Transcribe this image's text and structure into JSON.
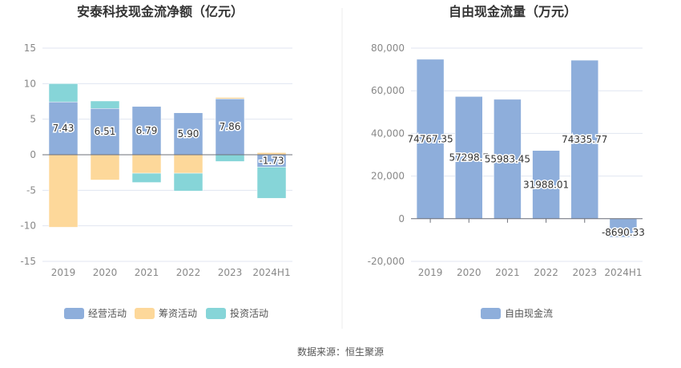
{
  "source": "数据来源：恒生聚源",
  "chart_data": [
    {
      "type": "bar",
      "stacked": true,
      "title": "安泰科技现金流净额（亿元）",
      "categories": [
        "2019",
        "2020",
        "2021",
        "2022",
        "2023",
        "2024H1"
      ],
      "ylim": [
        -15,
        15
      ],
      "yticks": [
        15,
        10,
        5,
        0,
        -5,
        -10,
        -15
      ],
      "legend_position": "bottom",
      "series": [
        {
          "name": "经营活动",
          "color": "#8eaedb",
          "values": [
            7.43,
            6.51,
            6.79,
            5.9,
            7.86,
            -1.73
          ],
          "labels": [
            "7.43",
            "6.51",
            "6.79",
            "5.90",
            "7.86",
            "-1.73"
          ]
        },
        {
          "name": "筹资活动",
          "color": "#fdd89a",
          "values": [
            -10.2,
            -3.55,
            -2.6,
            -2.6,
            0.2,
            0.3
          ]
        },
        {
          "name": "投资活动",
          "color": "#86d5d8",
          "values": [
            2.57,
            1.05,
            -1.3,
            -2.5,
            -0.95,
            -4.4
          ]
        }
      ]
    },
    {
      "type": "bar",
      "title": "自由现金流量（万元）",
      "categories": [
        "2019",
        "2020",
        "2021",
        "2022",
        "2023",
        "2024H1"
      ],
      "ylim": [
        -20000,
        80000
      ],
      "yticks": [
        "80,000",
        "60,000",
        "40,000",
        "20,000",
        "0",
        "-20,000"
      ],
      "legend_position": "bottom",
      "series": [
        {
          "name": "自由现金流",
          "color": "#8eaedb",
          "values": [
            74767.35,
            57298.7,
            55983.45,
            31988.01,
            74335.77,
            -8690.33
          ],
          "labels": [
            "74767.35",
            "57298.7",
            "55983.45",
            "31988.01",
            "74335.77",
            "-8690.33"
          ]
        }
      ]
    }
  ]
}
